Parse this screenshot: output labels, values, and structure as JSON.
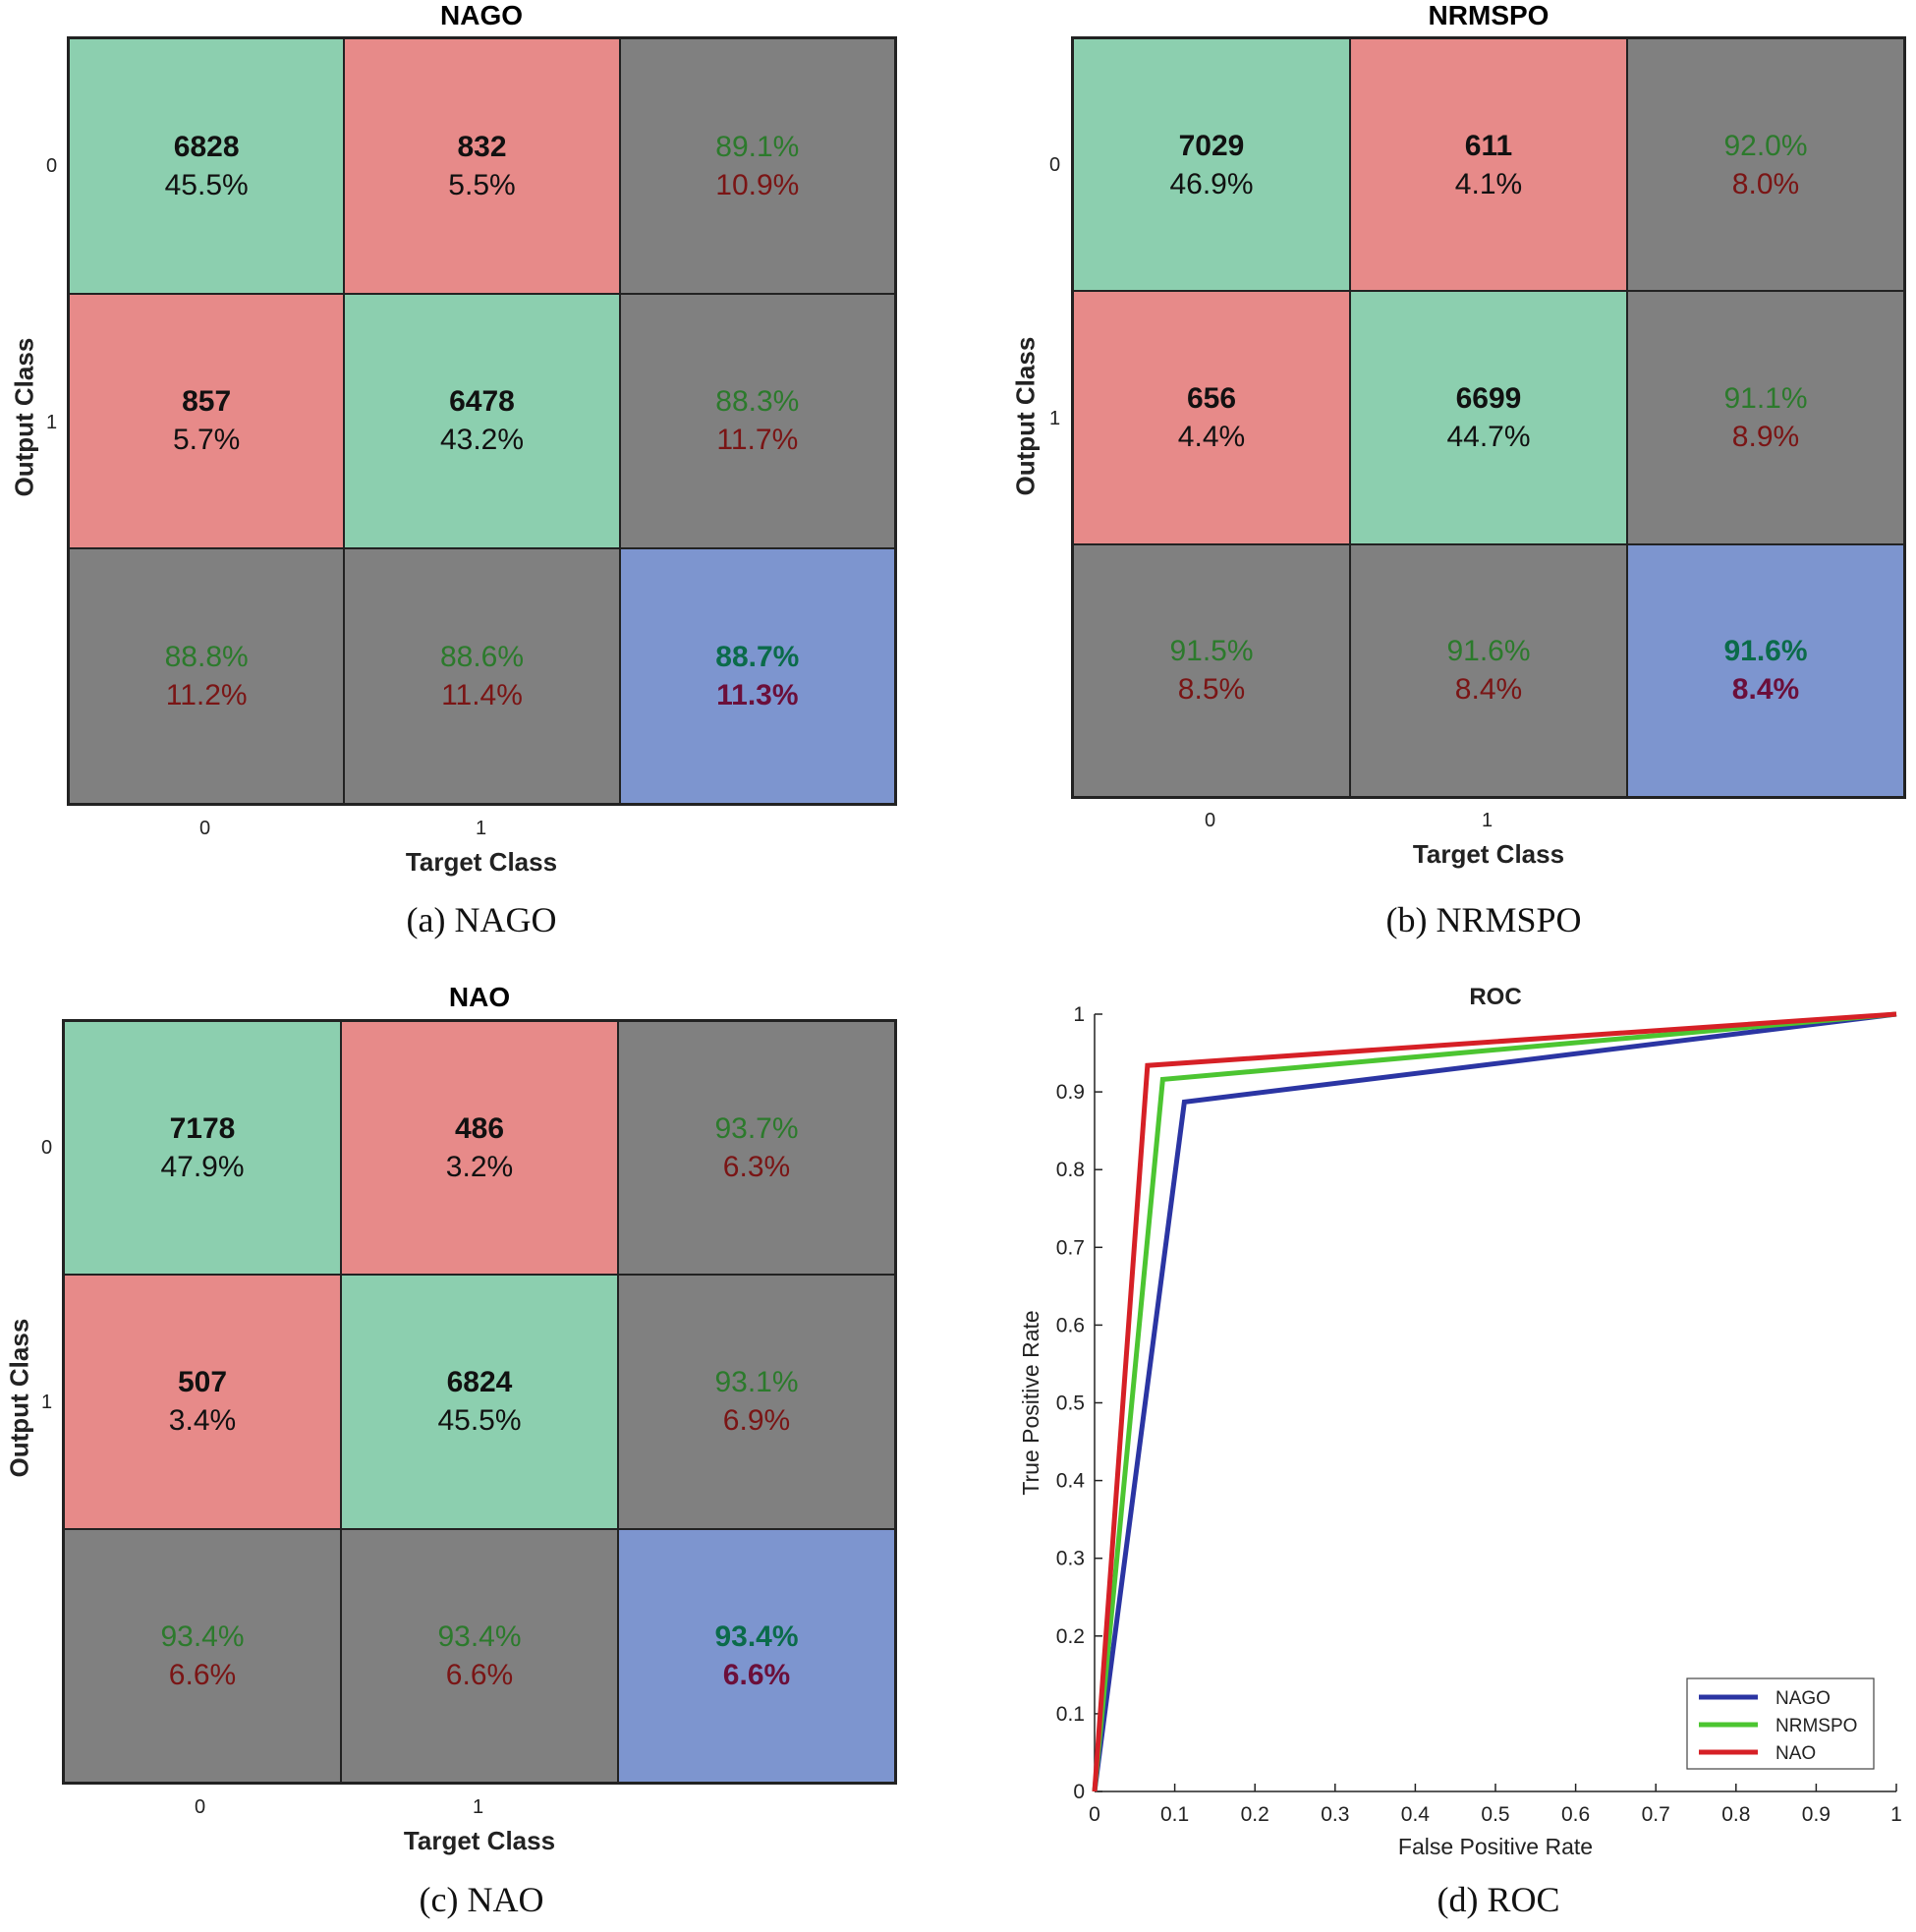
{
  "chart_data": [
    {
      "type": "table",
      "kind": "confusion-matrix",
      "title": "NAGO",
      "ylabel": "Output Class",
      "xlabel": "Target Class",
      "row_ticks": [
        "0",
        "1"
      ],
      "col_ticks": [
        "0",
        "1"
      ],
      "caption": "(a) NAGO",
      "cells": [
        [
          {
            "count": "6828",
            "pct": "45.5%"
          },
          {
            "count": "832",
            "pct": "5.5%"
          },
          {
            "top": "89.1%",
            "bottom": "10.9%"
          }
        ],
        [
          {
            "count": "857",
            "pct": "5.7%"
          },
          {
            "count": "6478",
            "pct": "43.2%"
          },
          {
            "top": "88.3%",
            "bottom": "11.7%"
          }
        ],
        [
          {
            "top": "88.8%",
            "bottom": "11.2%"
          },
          {
            "top": "88.6%",
            "bottom": "11.4%"
          },
          {
            "top": "88.7%",
            "bottom": "11.3%"
          }
        ]
      ]
    },
    {
      "type": "table",
      "kind": "confusion-matrix",
      "title": "NRMSPO",
      "ylabel": "Output Class",
      "xlabel": "Target Class",
      "row_ticks": [
        "0",
        "1"
      ],
      "col_ticks": [
        "0",
        "1"
      ],
      "caption": "(b) NRMSPO",
      "cells": [
        [
          {
            "count": "7029",
            "pct": "46.9%"
          },
          {
            "count": "611",
            "pct": "4.1%"
          },
          {
            "top": "92.0%",
            "bottom": "8.0%"
          }
        ],
        [
          {
            "count": "656",
            "pct": "4.4%"
          },
          {
            "count": "6699",
            "pct": "44.7%"
          },
          {
            "top": "91.1%",
            "bottom": "8.9%"
          }
        ],
        [
          {
            "top": "91.5%",
            "bottom": "8.5%"
          },
          {
            "top": "91.6%",
            "bottom": "8.4%"
          },
          {
            "top": "91.6%",
            "bottom": "8.4%"
          }
        ]
      ]
    },
    {
      "type": "table",
      "kind": "confusion-matrix",
      "title": "NAO",
      "ylabel": "Output Class",
      "xlabel": "Target Class",
      "row_ticks": [
        "0",
        "1"
      ],
      "col_ticks": [
        "0",
        "1"
      ],
      "caption": "(c) NAO",
      "cells": [
        [
          {
            "count": "7178",
            "pct": "47.9%"
          },
          {
            "count": "486",
            "pct": "3.2%"
          },
          {
            "top": "93.7%",
            "bottom": "6.3%"
          }
        ],
        [
          {
            "count": "507",
            "pct": "3.4%"
          },
          {
            "count": "6824",
            "pct": "45.5%"
          },
          {
            "top": "93.1%",
            "bottom": "6.9%"
          }
        ],
        [
          {
            "top": "93.4%",
            "bottom": "6.6%"
          },
          {
            "top": "93.4%",
            "bottom": "6.6%"
          },
          {
            "top": "93.4%",
            "bottom": "6.6%"
          }
        ]
      ]
    },
    {
      "type": "line",
      "title": "ROC",
      "xlabel": "False Positive Rate",
      "ylabel": "True Positive Rate",
      "xlim": [
        0,
        1
      ],
      "ylim": [
        0,
        1
      ],
      "xticks": [
        "0",
        "0.1",
        "0.2",
        "0.3",
        "0.4",
        "0.5",
        "0.6",
        "0.7",
        "0.8",
        "0.9",
        "1"
      ],
      "yticks": [
        "0",
        "0.1",
        "0.2",
        "0.3",
        "0.4",
        "0.5",
        "0.6",
        "0.7",
        "0.8",
        "0.9",
        "1"
      ],
      "legend_position": "bottom-right",
      "caption": "(d) ROC",
      "series": [
        {
          "name": "NAGO",
          "color": "#2b35a3",
          "x": [
            0,
            0.112,
            1
          ],
          "y": [
            0,
            0.887,
            1
          ]
        },
        {
          "name": "NRMSPO",
          "color": "#4cc531",
          "x": [
            0,
            0.085,
            1
          ],
          "y": [
            0,
            0.916,
            1
          ]
        },
        {
          "name": "NAO",
          "color": "#d62026",
          "x": [
            0,
            0.066,
            1
          ],
          "y": [
            0,
            0.934,
            1
          ]
        }
      ]
    }
  ]
}
